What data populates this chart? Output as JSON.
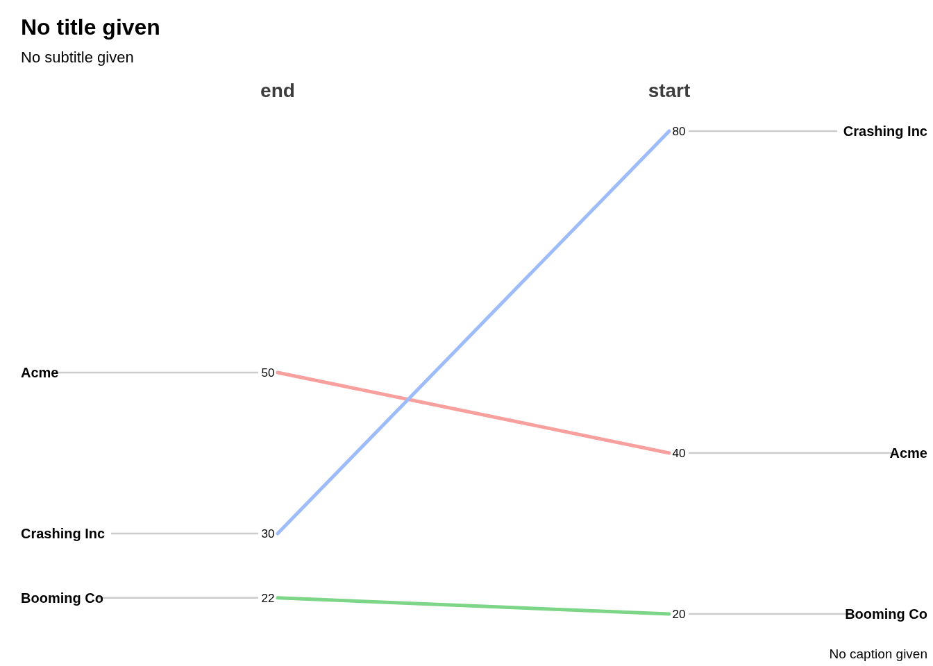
{
  "chart_data": {
    "type": "line",
    "title": "No title given",
    "subtitle": "No subtitle given",
    "annotations": [
      "No caption given"
    ],
    "categories": [
      "end",
      "start"
    ],
    "series": [
      {
        "name": "Acme",
        "color": "#f8a09e",
        "values": [
          50,
          40
        ]
      },
      {
        "name": "Crashing Inc",
        "color": "#9ebcf9",
        "values": [
          30,
          80
        ]
      },
      {
        "name": "Booming Co",
        "color": "#7dd587",
        "values": [
          22,
          20
        ]
      }
    ],
    "data_labels": true,
    "legend": false
  }
}
